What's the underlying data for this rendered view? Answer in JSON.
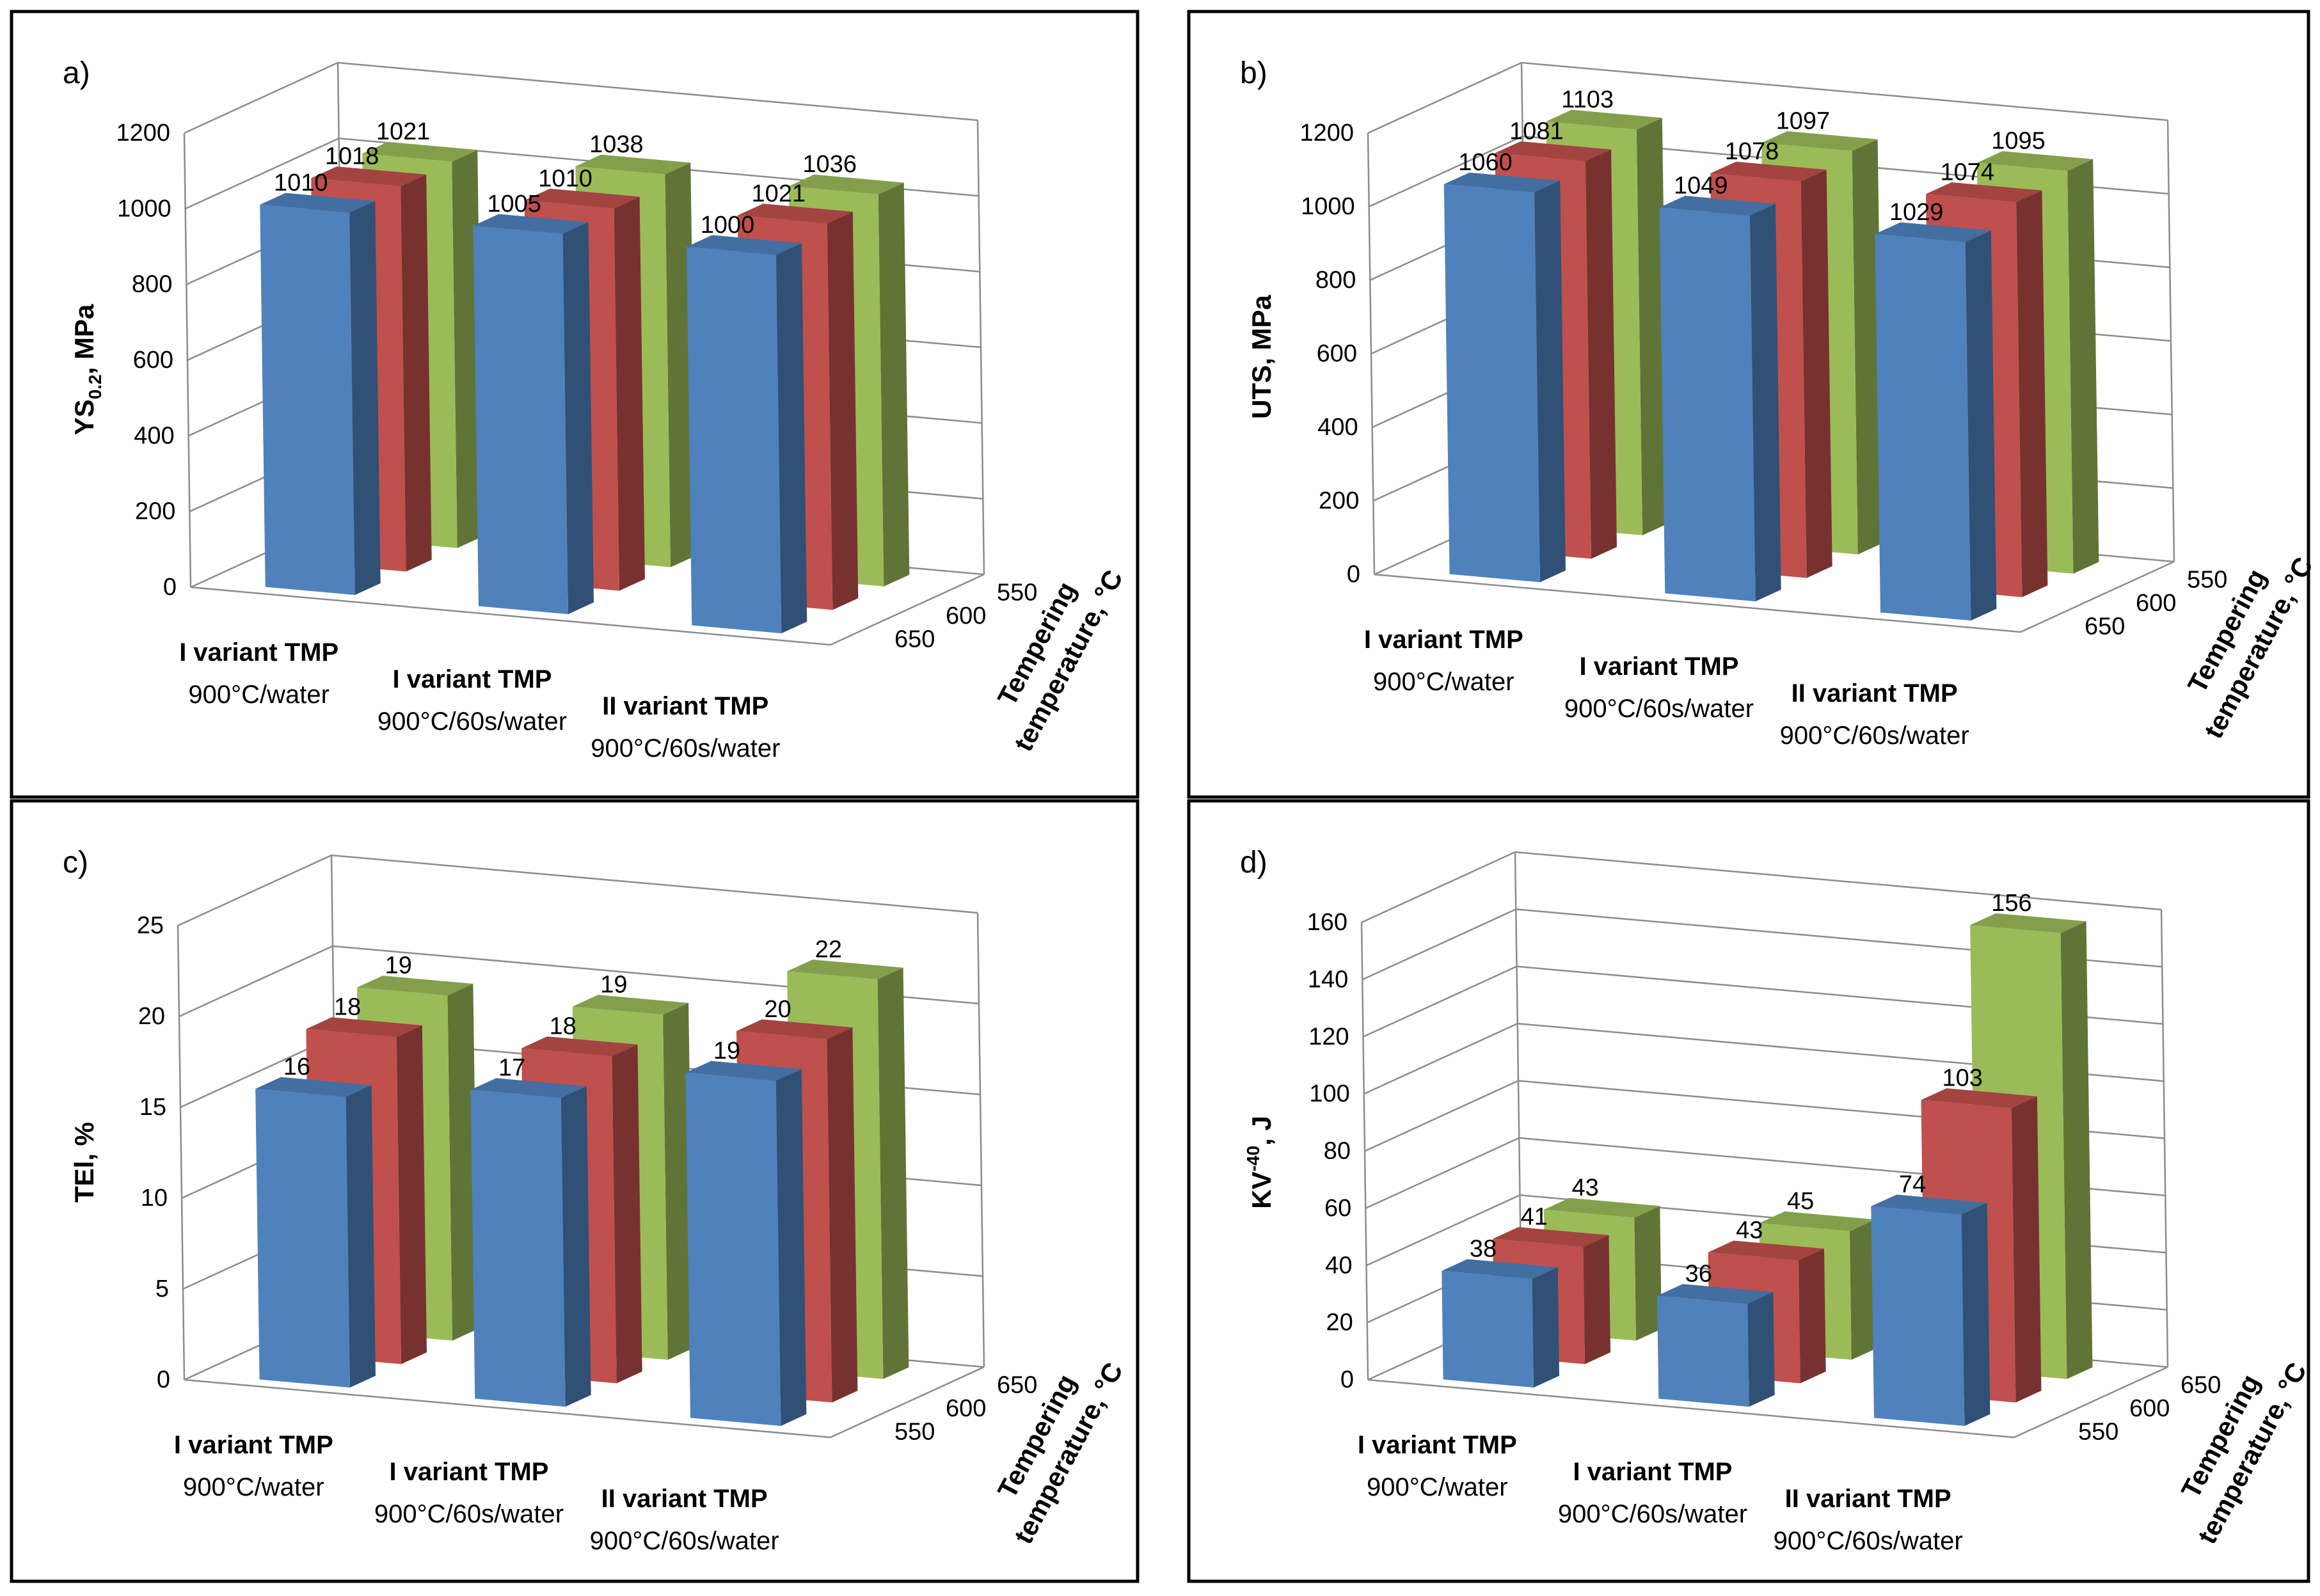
{
  "colors": {
    "blue": "#4f81bd",
    "red": "#c0504d",
    "green": "#9bbb59"
  },
  "chart_data": [
    {
      "type": "bar",
      "panel_label": "a)",
      "ylabel_main": "YS",
      "ylabel_sub": "0.2",
      "ylabel_rest": ", MPa",
      "ylim": [
        0,
        1200
      ],
      "yticks": [
        "0",
        "200",
        "400",
        "600",
        "800",
        "1000",
        "1200"
      ],
      "categories": [
        {
          "line1": "I variant TMP",
          "line2": "900°C/water"
        },
        {
          "line1": "I variant TMP",
          "line2": "900°C/60s/water"
        },
        {
          "line1": "II variant TMP",
          "line2": "900°C/60s/water"
        }
      ],
      "depth_label": "Tempering temperature, °C",
      "depth_label_line1": "Tempering",
      "depth_label_line2": "temperature, °C",
      "series": [
        {
          "name": "650",
          "color": "blue",
          "values": [
            1010,
            1005,
            1000
          ]
        },
        {
          "name": "600",
          "color": "red",
          "values": [
            1018,
            1010,
            1021
          ]
        },
        {
          "name": "550",
          "color": "green",
          "values": [
            1021,
            1038,
            1036
          ]
        }
      ],
      "depth_ticks_front_to_back": [
        "650",
        "600",
        "550"
      ]
    },
    {
      "type": "bar",
      "panel_label": "b)",
      "ylabel_main": "UTS, MPa",
      "ylabel_sub": "",
      "ylabel_rest": "",
      "ylim": [
        0,
        1200
      ],
      "yticks": [
        "0",
        "200",
        "400",
        "600",
        "800",
        "1000",
        "1200"
      ],
      "categories": [
        {
          "line1": "I variant TMP",
          "line2": "900°C/water"
        },
        {
          "line1": "I variant TMP",
          "line2": "900°C/60s/water"
        },
        {
          "line1": "II variant TMP",
          "line2": "900°C/60s/water"
        }
      ],
      "depth_label": "Tempering temperature, °C",
      "depth_label_line1": "Tempering",
      "depth_label_line2": "temperature, °C",
      "series": [
        {
          "name": "650",
          "color": "blue",
          "values": [
            1060,
            1049,
            1029
          ]
        },
        {
          "name": "600",
          "color": "red",
          "values": [
            1081,
            1078,
            1074
          ]
        },
        {
          "name": "550",
          "color": "green",
          "values": [
            1103,
            1097,
            1095
          ]
        }
      ],
      "depth_ticks_front_to_back": [
        "650",
        "600",
        "550"
      ]
    },
    {
      "type": "bar",
      "panel_label": "c)",
      "ylabel_main": "TEl, %",
      "ylabel_sub": "",
      "ylabel_rest": "",
      "ylim": [
        0,
        25
      ],
      "yticks": [
        "0",
        "5",
        "10",
        "15",
        "20",
        "25"
      ],
      "categories": [
        {
          "line1": "I variant TMP",
          "line2": "900°C/water"
        },
        {
          "line1": "I variant TMP",
          "line2": "900°C/60s/water"
        },
        {
          "line1": "II variant TMP",
          "line2": "900°C/60s/water"
        }
      ],
      "depth_label": "Tempering temperature, °C",
      "depth_label_line1": "Tempering",
      "depth_label_line2": "temperature, °C",
      "series": [
        {
          "name": "550",
          "color": "blue",
          "values": [
            16,
            17,
            19
          ]
        },
        {
          "name": "600",
          "color": "red",
          "values": [
            18,
            18,
            20
          ]
        },
        {
          "name": "650",
          "color": "green",
          "values": [
            19,
            19,
            22
          ]
        }
      ],
      "depth_ticks_front_to_back": [
        "550",
        "600",
        "650"
      ]
    },
    {
      "type": "bar",
      "panel_label": "d)",
      "ylabel_main": "KV",
      "ylabel_sup": "-40",
      "ylabel_rest": ", J",
      "ylim": [
        0,
        160
      ],
      "yticks": [
        "0",
        "20",
        "40",
        "60",
        "80",
        "100",
        "120",
        "140",
        "160"
      ],
      "categories": [
        {
          "line1": "I variant TMP",
          "line2": "900°C/water"
        },
        {
          "line1": "I variant TMP",
          "line2": "900°C/60s/water"
        },
        {
          "line1": "II variant TMP",
          "line2": "900°C/60s/water"
        }
      ],
      "depth_label": "Tempering temperature, °C",
      "depth_label_line1": "Tempering",
      "depth_label_line2": "temperature, °C",
      "series": [
        {
          "name": "550",
          "color": "blue",
          "values": [
            38,
            36,
            74
          ]
        },
        {
          "name": "600",
          "color": "red",
          "values": [
            41,
            43,
            103
          ]
        },
        {
          "name": "650",
          "color": "green",
          "values": [
            43,
            45,
            156
          ]
        }
      ],
      "depth_ticks_front_to_back": [
        "550",
        "600",
        "650"
      ]
    }
  ]
}
